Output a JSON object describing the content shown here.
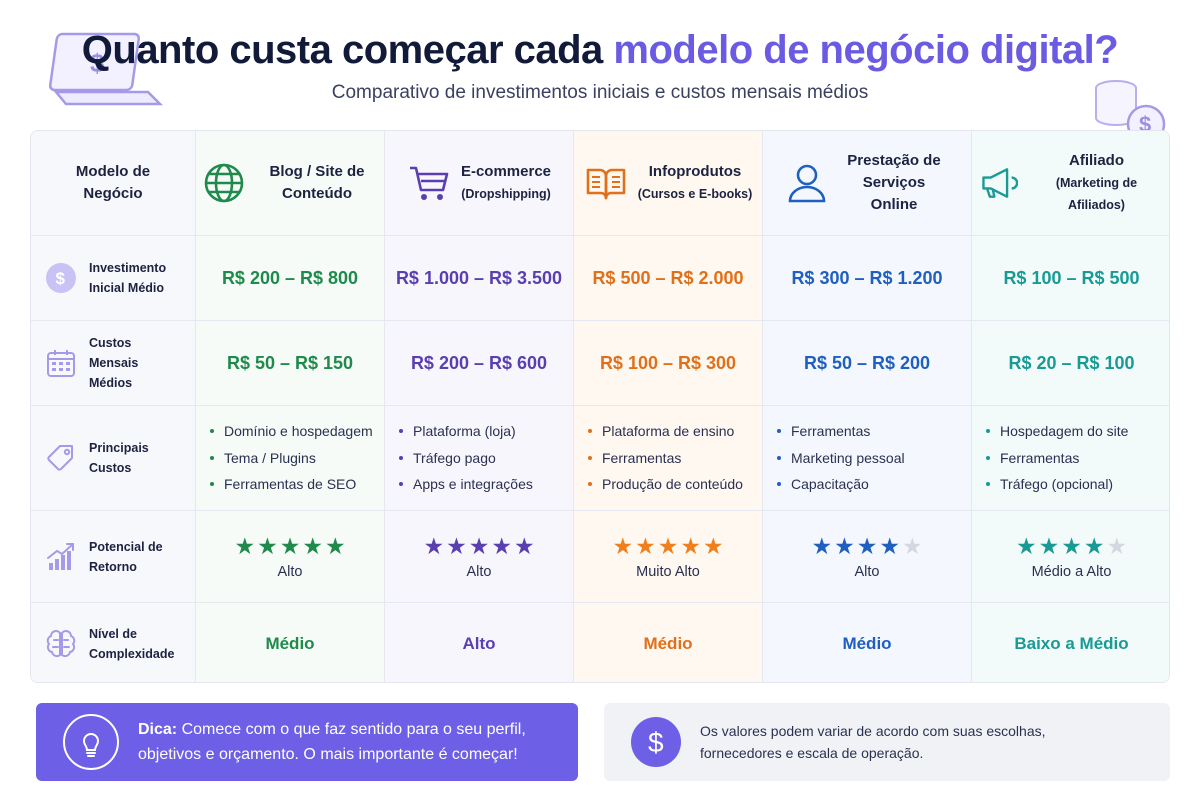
{
  "header": {
    "title_main": "Quanto custa começar cada ",
    "title_accent": "modelo de negócio digital?",
    "subtitle": "Comparativo de investimentos iniciais e custos mensais médios"
  },
  "table": {
    "corner_label": "Modelo de Negócio",
    "columns": [
      {
        "name": "Blog / Site de Conteúdo",
        "sub": "",
        "icon": "globe-icon",
        "color": "#1f8a4c"
      },
      {
        "name": "E-commerce",
        "sub": "(Dropshipping)",
        "icon": "shopping-cart-icon",
        "color": "#5a3fb0"
      },
      {
        "name": "Infoprodutos",
        "sub": "(Cursos e E-books)",
        "icon": "open-book-icon",
        "color": "#e0701a"
      },
      {
        "name": "Prestação de Serviços Online",
        "sub": "",
        "icon": "person-icon",
        "color": "#1f5fbf"
      },
      {
        "name": "Afiliado",
        "sub": "(Marketing de Afiliados)",
        "icon": "megaphone-icon",
        "color": "#1a9a95"
      }
    ],
    "rows": {
      "investment": {
        "label": "Investimento Inicial Médio",
        "icon": "dollar-coin-icon",
        "values": [
          "R$ 200 – R$ 800",
          "R$ 1.000 – R$ 3.500",
          "R$ 500 – R$ 2.000",
          "R$ 300 – R$ 1.200",
          "R$ 100 – R$ 500"
        ]
      },
      "monthly": {
        "label": "Custos Mensais Médios",
        "icon": "calendar-icon",
        "values": [
          "R$ 50 – R$ 150",
          "R$ 200 – R$ 600",
          "R$ 100 – R$ 300",
          "R$ 50 – R$ 200",
          "R$ 20 – R$ 100"
        ]
      },
      "costs": {
        "label": "Principais Custos",
        "icon": "tag-icon",
        "values": [
          [
            "Domínio e hospedagem",
            "Tema / Plugins",
            "Ferramentas de SEO"
          ],
          [
            "Plataforma (loja)",
            "Tráfego pago",
            "Apps e integrações"
          ],
          [
            "Plataforma de ensino",
            "Ferramentas",
            "Produção de conteúdo"
          ],
          [
            "Ferramentas",
            "Marketing pessoal",
            "Capacitação"
          ],
          [
            "Hospedagem do site",
            "Ferramentas",
            "Tráfego (opcional)"
          ]
        ]
      },
      "return": {
        "label": "Potencial de Retorno",
        "icon": "growth-chart-icon",
        "stars": [
          5,
          5,
          5,
          4,
          4
        ],
        "max_stars": 5,
        "values": [
          "Alto",
          "Alto",
          "Muito Alto",
          "Alto",
          "Médio a Alto"
        ]
      },
      "complexity": {
        "label": "Nível de Complexidade",
        "icon": "brain-icon",
        "values": [
          "Médio",
          "Alto",
          "Médio",
          "Médio",
          "Baixo a Médio"
        ]
      }
    }
  },
  "tip": {
    "label": "Dica:",
    "text": " Comece com o que faz sentido para o seu perfil, objetivos e orçamento. O mais importante é começar!",
    "icon": "lightbulb-icon"
  },
  "note": {
    "text": "Os valores podem variar de acordo com suas escolhas, fornecedores e escala de operação.",
    "icon": "dollar-coin-icon"
  },
  "decorations": {
    "left": "laptop-dollar-icon",
    "right": "coin-stack-icon"
  }
}
